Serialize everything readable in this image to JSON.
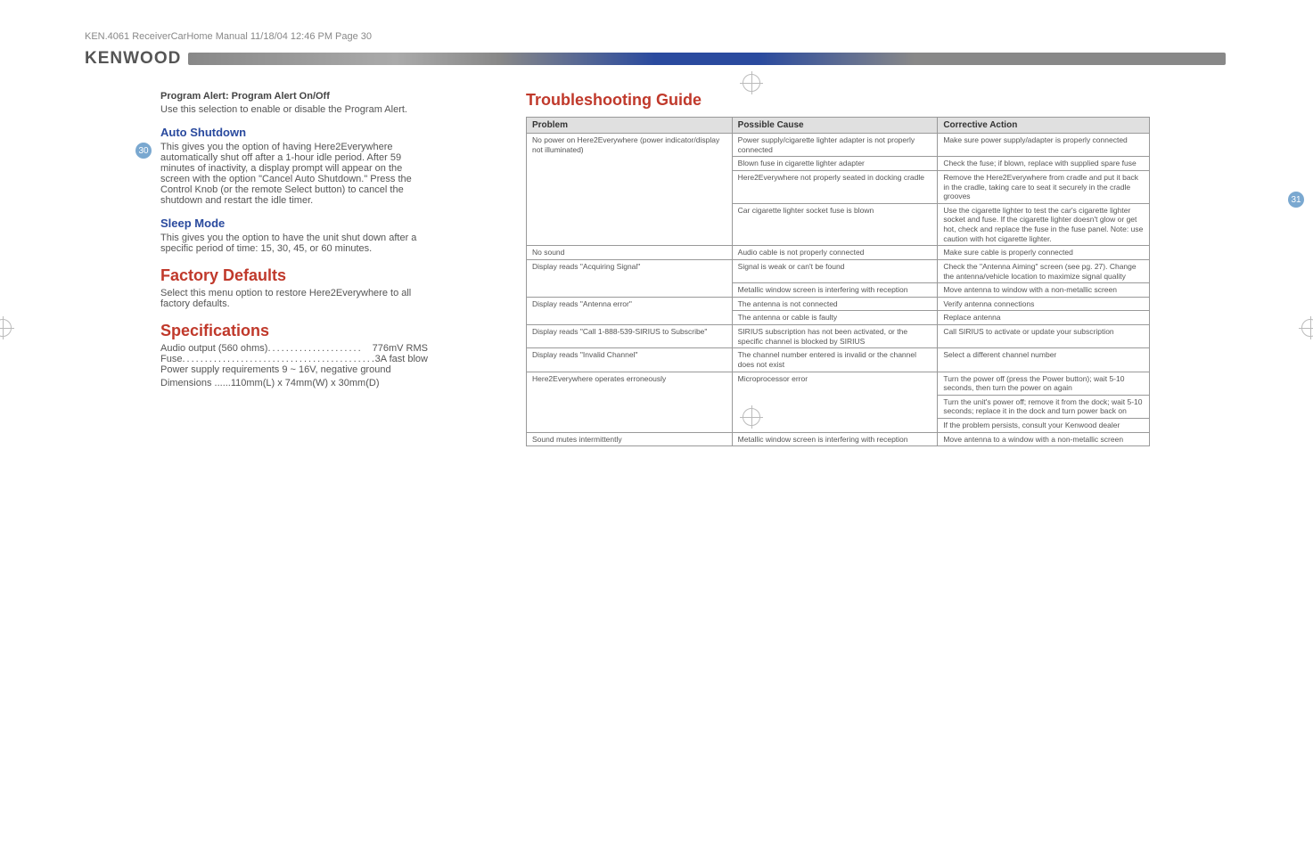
{
  "header_line": "KEN.4061 ReceiverCarHome Manual  11/18/04  12:46 PM  Page 30",
  "brand": "KENWOOD",
  "page_left": "30",
  "page_right": "31",
  "left": {
    "pa_title": "Program Alert: Program Alert On/Off",
    "pa_body": "Use this selection to enable or disable the Program Alert.",
    "auto_h": "Auto Shutdown",
    "auto_body": "This gives you the option of having Here2Everywhere automatically shut off after a 1-hour idle period. After 59 minutes of inactivity, a display prompt will appear on the screen with the option \"Cancel Auto Shutdown.\" Press the Control Knob (or the remote Select button) to cancel the shutdown and restart the idle timer.",
    "sleep_h": "Sleep Mode",
    "sleep_body": "This gives you the option to have the unit shut down after a specific period of time: 15, 30, 45, or 60 minutes.",
    "fd_h": "Factory Defaults",
    "fd_body": "Select this menu option to restore Here2Everywhere to all factory defaults.",
    "spec_h": "Specifications",
    "spec1_l": "Audio output (560 ohms)",
    "spec1_v": "776mV RMS",
    "spec2_l": "Fuse ",
    "spec2_v": "3A fast blow",
    "spec3": "Power supply requirements 9 ~ 16V, negative ground",
    "spec4": "Dimensions ......110mm(L) x 74mm(W) x 30mm(D)"
  },
  "ts_title": "Troubleshooting Guide",
  "th1": "Problem",
  "th2": "Possible Cause",
  "th3": "Corrective Action",
  "rows": [
    {
      "p": "No power on Here2Everywhere (power indicator/display not illuminated)",
      "c": "Power supply/cigarette lighter adapter is not properly connected",
      "a": "Make sure power supply/adapter is properly connected"
    },
    {
      "p": "",
      "c": "Blown fuse in cigarette lighter adapter",
      "a": "Check the fuse; if blown, replace with supplied spare fuse"
    },
    {
      "p": "",
      "c": "Here2Everywhere not properly seated in docking cradle",
      "a": "Remove the Here2Everywhere from cradle and put it back in the cradle, taking care to seat it securely in the cradle grooves"
    },
    {
      "p": "",
      "c": "Car cigarette lighter socket fuse is blown",
      "a": "Use the cigarette lighter to test the car's cigarette lighter socket and fuse. If the cigarette lighter doesn't glow or get hot, check and replace the fuse in the fuse panel. Note: use caution with hot cigarette lighter."
    },
    {
      "p": "No sound",
      "c": "Audio cable is not properly connected",
      "a": "Make sure cable is properly connected"
    },
    {
      "p": "Display reads \"Acquiring Signal\"",
      "c": "Signal is weak or can't be found",
      "a": "Check the \"Antenna Aiming\" screen (see pg. 27). Change the antenna/vehicle location to maximize signal quality"
    },
    {
      "p": "",
      "c": "Metallic window screen is interfering with reception",
      "a": "Move antenna to window with a non-metallic screen"
    },
    {
      "p": "Display reads \"Antenna error\"",
      "c": "The antenna is not connected",
      "a": "Verify antenna connections"
    },
    {
      "p": "",
      "c": "The antenna or cable is faulty",
      "a": "Replace antenna"
    },
    {
      "p": "Display reads \"Call 1-888-539-SIRIUS to Subscribe\"",
      "c": "SIRIUS subscription has not been activated, or the specific channel is blocked by SIRIUS",
      "a": "Call SIRIUS to activate or update your subscription"
    },
    {
      "p": "Display reads \"Invalid Channel\"",
      "c": "The channel number entered is invalid or the channel does not exist",
      "a": "Select a different channel number"
    },
    {
      "p": "Here2Everywhere operates erroneously",
      "c": "Microprocessor error",
      "a": "Turn the power off (press the Power button); wait 5-10 seconds, then turn the power on again"
    },
    {
      "p": "",
      "c": "",
      "a": "Turn the unit's power off; remove it from the dock; wait 5-10 seconds; replace it in the dock and turn power back on"
    },
    {
      "p": "",
      "c": "",
      "a": "If the problem persists, consult your Kenwood dealer"
    },
    {
      "p": "Sound mutes intermittently",
      "c": "Metallic window screen is interfering with reception",
      "a": "Move antenna to a window with a non-metallic screen"
    }
  ]
}
